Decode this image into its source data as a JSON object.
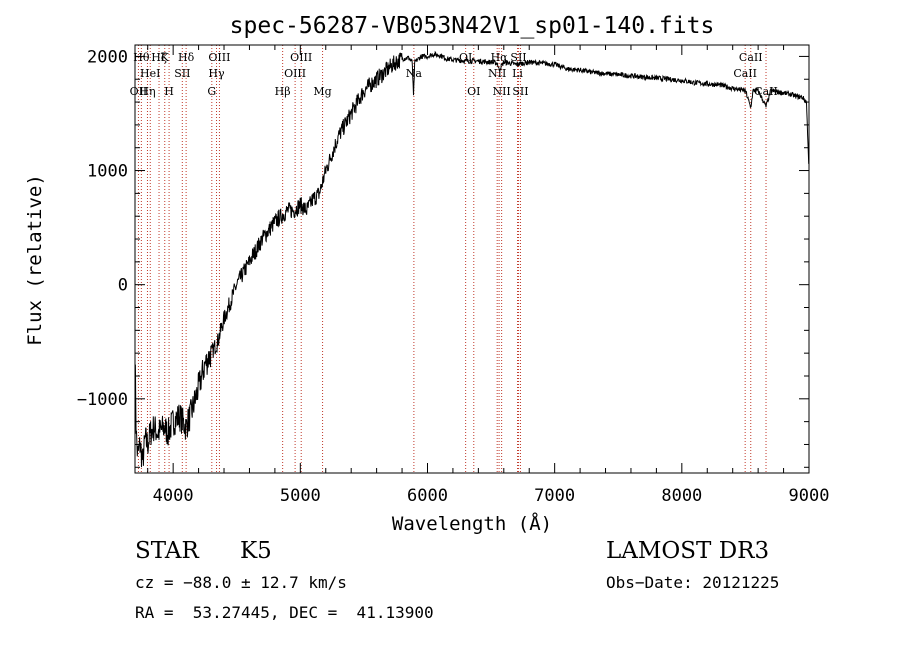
{
  "chart_data": {
    "type": "line",
    "title": "spec-56287-VB053N42V1_sp01-140.fits",
    "xlabel": "Wavelength (Å)",
    "ylabel": "Flux (relative)",
    "xlim": [
      3700,
      9000
    ],
    "ylim": [
      -1650,
      2100
    ],
    "xticks": [
      4000,
      5000,
      6000,
      7000,
      8000,
      9000
    ],
    "xtick_labels": [
      "4000",
      "5000",
      "6000",
      "7000",
      "8000",
      "9000"
    ],
    "yticks": [
      -1000,
      0,
      1000,
      2000
    ],
    "ytick_labels": [
      "−1000",
      "0",
      "1000",
      "2000"
    ],
    "series": [
      {
        "name": "spectrum",
        "x": [
          3700,
          3710,
          3720,
          3740,
          3760,
          3780,
          3800,
          3820,
          3850,
          3880,
          3900,
          3930,
          3960,
          4000,
          4050,
          4100,
          4150,
          4200,
          4250,
          4300,
          4350,
          4400,
          4450,
          4500,
          4600,
          4700,
          4800,
          4850,
          4900,
          4950,
          5000,
          5050,
          5100,
          5150,
          5200,
          5250,
          5300,
          5400,
          5500,
          5600,
          5700,
          5750,
          5800,
          5850,
          5880,
          5890,
          5900,
          5950,
          6000,
          6050,
          6100,
          6150,
          6200,
          6300,
          6400,
          6500,
          6550,
          6563,
          6600,
          6700,
          6800,
          6900,
          7000,
          7100,
          7200,
          7300,
          7400,
          7500,
          7600,
          7700,
          7800,
          7900,
          8000,
          8100,
          8200,
          8300,
          8400,
          8450,
          8500,
          8542,
          8560,
          8600,
          8662,
          8700,
          8800,
          8850,
          8900,
          8950,
          8980,
          9000
        ],
        "values": [
          -600,
          -1300,
          -1500,
          -1400,
          -1550,
          -1350,
          -1400,
          -1300,
          -1250,
          -1300,
          -1280,
          -1250,
          -1300,
          -1200,
          -1150,
          -1250,
          -1100,
          -900,
          -700,
          -600,
          -500,
          -300,
          -150,
          0,
          200,
          400,
          550,
          600,
          650,
          650,
          700,
          650,
          750,
          800,
          1000,
          1150,
          1300,
          1500,
          1700,
          1800,
          1900,
          1950,
          1980,
          1990,
          1950,
          1650,
          1950,
          2000,
          2000,
          2020,
          2010,
          1980,
          1970,
          1960,
          1960,
          1950,
          1940,
          1880,
          1950,
          1930,
          1950,
          1940,
          1930,
          1890,
          1880,
          1860,
          1850,
          1840,
          1830,
          1820,
          1810,
          1800,
          1790,
          1770,
          1760,
          1750,
          1720,
          1710,
          1700,
          1550,
          1700,
          1700,
          1560,
          1700,
          1680,
          1670,
          1650,
          1640,
          1600,
          1000
        ]
      }
    ],
    "lines": [
      {
        "w": 3727,
        "label": "OII",
        "row": 3
      },
      {
        "w": 3750,
        "label": "Hθ",
        "row": 1
      },
      {
        "w": 3798,
        "label": "Hη",
        "row": 3
      },
      {
        "w": 3820,
        "label": "HeI",
        "row": 2
      },
      {
        "w": 3889,
        "label": "Hζ",
        "row": 1
      },
      {
        "w": 3934,
        "label": "K",
        "row": 1
      },
      {
        "w": 3968,
        "label": "H",
        "row": 3
      },
      {
        "w": 4072,
        "label": "SII",
        "row": 2
      },
      {
        "w": 4102,
        "label": "Hδ",
        "row": 1
      },
      {
        "w": 4304,
        "label": "G",
        "row": 3
      },
      {
        "w": 4341,
        "label": "Hγ",
        "row": 2
      },
      {
        "w": 4364,
        "label": "OIII",
        "row": 1
      },
      {
        "w": 4861,
        "label": "Hβ",
        "row": 3
      },
      {
        "w": 4959,
        "label": "OIII",
        "row": 2
      },
      {
        "w": 5007,
        "label": "OIII",
        "row": 1
      },
      {
        "w": 5175,
        "label": "Mg",
        "row": 3
      },
      {
        "w": 5893,
        "label": "Na",
        "row": 2
      },
      {
        "w": 6300,
        "label": "OI",
        "row": 1
      },
      {
        "w": 6364,
        "label": "OI",
        "row": 3
      },
      {
        "w": 6548,
        "label": "NII",
        "row": 2
      },
      {
        "w": 6563,
        "label": "Hα",
        "row": 1
      },
      {
        "w": 6583,
        "label": "NII",
        "row": 3
      },
      {
        "w": 6708,
        "label": "Li",
        "row": 2
      },
      {
        "w": 6716,
        "label": "SII",
        "row": 1
      },
      {
        "w": 6731,
        "label": "SII",
        "row": 3
      },
      {
        "w": 8498,
        "label": "CaII",
        "row": 2
      },
      {
        "w": 8542,
        "label": "CaII",
        "row": 1
      },
      {
        "w": 8662,
        "label": "CaII",
        "row": 3
      }
    ]
  },
  "info": {
    "class": "STAR",
    "subclass": "K5",
    "survey": "LAMOST DR3",
    "cz": "cz = −88.0 ± 12.7 km/s",
    "obs_date": "Obs−Date: 20121225",
    "radec": "RA =  53.27445, DEC =  41.13900"
  },
  "colors": {
    "line_marker": "#c0392b",
    "spectrum": "#000000"
  }
}
